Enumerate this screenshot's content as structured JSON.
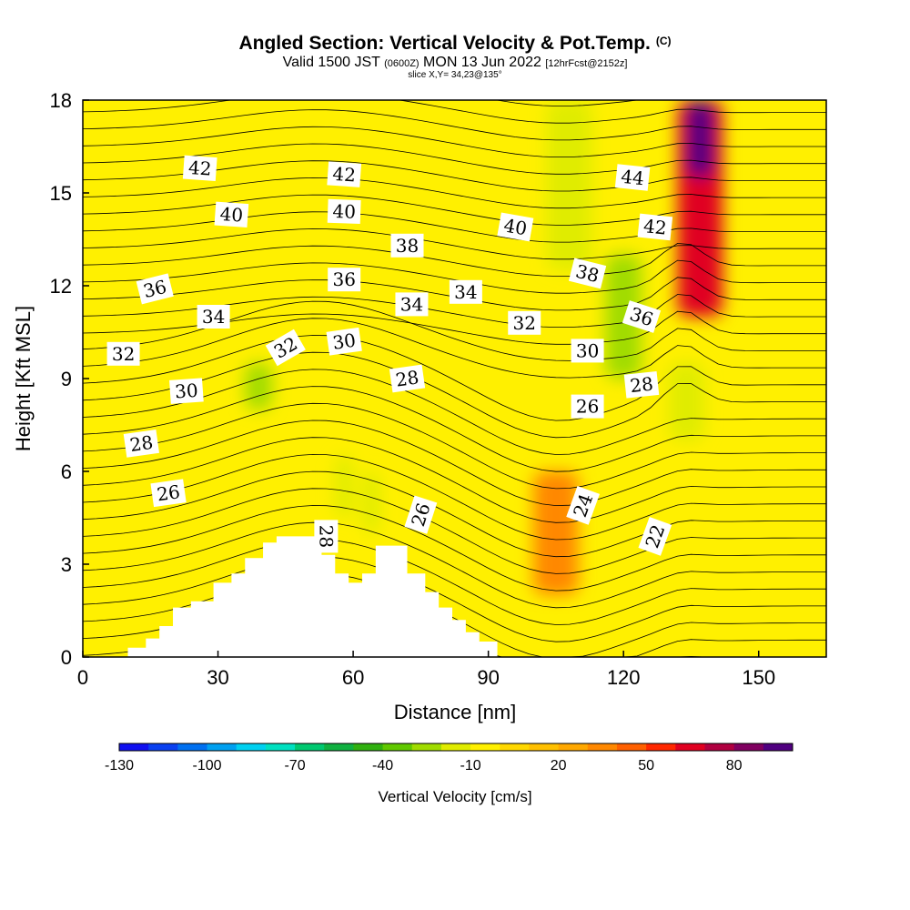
{
  "title": {
    "main": "Angled Section: Vertical Velocity & Pot.Temp.",
    "copyright": "(C)",
    "valid_pre": "Valid 1500 JST",
    "valid_utc": "(0600Z)",
    "valid_post": "MON 13 Jun 2022",
    "fcst": "[12hrFcst@2152z]",
    "slice": "slice X,Y= 34,23@135°"
  },
  "chart_data": {
    "type": "heatmap",
    "xlabel": "Distance [nm]",
    "ylabel": "Height [Kft MSL]",
    "xlim": [
      0,
      165
    ],
    "ylim": [
      0,
      18
    ],
    "x_ticks": [
      "0",
      "30",
      "60",
      "90",
      "120",
      "150"
    ],
    "y_ticks": [
      "0",
      "3",
      "6",
      "9",
      "12",
      "15",
      "18"
    ],
    "colorbar": {
      "label": "Vertical Velocity [cm/s]",
      "tick_labels": [
        "-130",
        "-100",
        "-70",
        "-40",
        "-10",
        "20",
        "50",
        "80"
      ],
      "colors": [
        "#1010f0",
        "#0a40f0",
        "#0070f0",
        "#00a0f0",
        "#00d0f0",
        "#00e0c0",
        "#00c870",
        "#10b040",
        "#30b010",
        "#60c800",
        "#a0dc00",
        "#e0ec00",
        "#fff000",
        "#ffd800",
        "#ffc000",
        "#ffa800",
        "#ff8800",
        "#ff6000",
        "#ff2800",
        "#e00020",
        "#b00040",
        "#800060",
        "#500080"
      ]
    },
    "background_value_cm_s": 0,
    "velocity_features": [
      {
        "x": [
          104,
          112
        ],
        "y": [
          14,
          18
        ],
        "value_cm_s": -40
      },
      {
        "x": [
          103,
          113
        ],
        "y": [
          12.5,
          18
        ],
        "value_cm_s": -20
      },
      {
        "x": [
          116,
          124
        ],
        "y": [
          9,
          13
        ],
        "value_cm_s": -25
      },
      {
        "x": [
          130,
          138
        ],
        "y": [
          7,
          9.5
        ],
        "value_cm_s": -20
      },
      {
        "x": [
          36,
          42
        ],
        "y": [
          8,
          9.5
        ],
        "value_cm_s": -30
      },
      {
        "x": [
          132,
          142
        ],
        "y": [
          11,
          18
        ],
        "value_cm_s": 60
      },
      {
        "x": [
          134,
          140
        ],
        "y": [
          15.5,
          18
        ],
        "value_cm_s": 90
      },
      {
        "x": [
          100,
          110
        ],
        "y": [
          2,
          6
        ],
        "value_cm_s": 30
      },
      {
        "x": [
          62,
          66
        ],
        "y": [
          4,
          6
        ],
        "value_cm_s": -20
      },
      {
        "x": [
          56,
          60
        ],
        "y": [
          4.5,
          6.5
        ],
        "value_cm_s": -15
      }
    ],
    "terrain_kft": {
      "x": [
        10,
        14,
        17,
        20,
        24,
        29,
        33,
        36,
        40,
        43,
        47,
        53,
        56,
        59,
        62,
        65,
        68,
        72,
        76,
        79,
        82,
        85,
        88,
        92
      ],
      "top": [
        0.3,
        0.6,
        1.0,
        1.6,
        1.8,
        2.4,
        2.7,
        3.2,
        3.7,
        3.9,
        3.9,
        3.3,
        2.7,
        2.4,
        2.7,
        3.6,
        3.6,
        2.7,
        2.1,
        1.6,
        1.2,
        0.8,
        0.5,
        0
      ]
    },
    "theta_contour_labels": [
      {
        "text": "42",
        "x": 26,
        "y": 15.8,
        "angle": 4
      },
      {
        "text": "42",
        "x": 58,
        "y": 15.6,
        "angle": 4
      },
      {
        "text": "44",
        "x": 122,
        "y": 15.5,
        "angle": 6
      },
      {
        "text": "40",
        "x": 33,
        "y": 14.3,
        "angle": 4
      },
      {
        "text": "40",
        "x": 58,
        "y": 14.4,
        "angle": 2
      },
      {
        "text": "40",
        "x": 96,
        "y": 13.9,
        "angle": 10
      },
      {
        "text": "42",
        "x": 127,
        "y": 13.9,
        "angle": 6
      },
      {
        "text": "38",
        "x": 72,
        "y": 13.3,
        "angle": 0
      },
      {
        "text": "38",
        "x": 112,
        "y": 12.4,
        "angle": 14
      },
      {
        "text": "36",
        "x": 16,
        "y": 11.9,
        "angle": -14
      },
      {
        "text": "36",
        "x": 58,
        "y": 12.2,
        "angle": 0
      },
      {
        "text": "34",
        "x": 85,
        "y": 11.8,
        "angle": 0
      },
      {
        "text": "34",
        "x": 73,
        "y": 11.4,
        "angle": 0
      },
      {
        "text": "34",
        "x": 29,
        "y": 11.0,
        "angle": 0
      },
      {
        "text": "36",
        "x": 124,
        "y": 11.0,
        "angle": 18
      },
      {
        "text": "32",
        "x": 98,
        "y": 10.8,
        "angle": 0
      },
      {
        "text": "32",
        "x": 9,
        "y": 9.8,
        "angle": 0
      },
      {
        "text": "32",
        "x": 45,
        "y": 10.0,
        "angle": -30
      },
      {
        "text": "30",
        "x": 58,
        "y": 10.2,
        "angle": -8
      },
      {
        "text": "30",
        "x": 112,
        "y": 9.9,
        "angle": 0
      },
      {
        "text": "30",
        "x": 23,
        "y": 8.6,
        "angle": -4
      },
      {
        "text": "28",
        "x": 72,
        "y": 9.0,
        "angle": -8
      },
      {
        "text": "28",
        "x": 124,
        "y": 8.8,
        "angle": -6
      },
      {
        "text": "26",
        "x": 112,
        "y": 8.1,
        "angle": 0
      },
      {
        "text": "28",
        "x": 13,
        "y": 6.9,
        "angle": -8
      },
      {
        "text": "26",
        "x": 19,
        "y": 5.3,
        "angle": -8
      },
      {
        "text": "26",
        "x": 75,
        "y": 4.6,
        "angle": -72
      },
      {
        "text": "28",
        "x": 54,
        "y": 3.9,
        "angle": 90
      },
      {
        "text": "24",
        "x": 111,
        "y": 4.9,
        "angle": -70
      },
      {
        "text": "22",
        "x": 127,
        "y": 3.9,
        "angle": -70
      }
    ]
  }
}
